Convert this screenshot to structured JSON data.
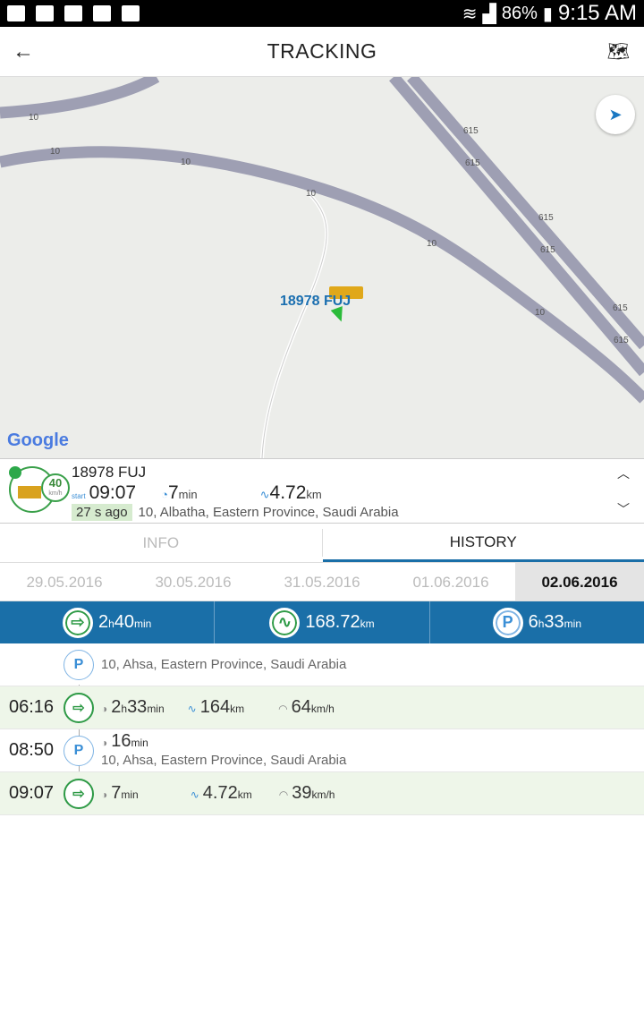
{
  "status_bar": {
    "battery": "86%",
    "time": "9:15 AM"
  },
  "header": {
    "title": "TRACKING",
    "back_icon": "arrow-left-icon",
    "map_icon": "map-icon"
  },
  "map": {
    "road_labels": [
      "10",
      "10",
      "10",
      "10",
      "10",
      "10",
      "615",
      "615",
      "615",
      "615",
      "615",
      "615"
    ],
    "vehicle_label": "18978 FUJ",
    "attribution": "Google"
  },
  "vehicle": {
    "name": "18978 FUJ",
    "speed": "40",
    "speed_unit": "km/h",
    "start_label": "start",
    "start_time": "09:07",
    "duration": "7",
    "duration_unit": "min",
    "distance": "4.72",
    "distance_unit": "km",
    "ago": "27 s ago",
    "address": "10, Albatha, Eastern Province, Saudi Arabia"
  },
  "tabs": [
    {
      "label": "INFO",
      "active": false
    },
    {
      "label": "HISTORY",
      "active": true
    }
  ],
  "dates": [
    {
      "label": "29.05.2016"
    },
    {
      "label": "30.05.2016"
    },
    {
      "label": "31.05.2016"
    },
    {
      "label": "01.06.2016"
    },
    {
      "label": "02.06.2016",
      "active": true
    }
  ],
  "summary": {
    "driving_h": "2",
    "driving_m": "40",
    "distance": "168.72",
    "parking_h": "6",
    "parking_m": "33",
    "h": "h",
    "min": "min",
    "km": "km"
  },
  "history": [
    {
      "type": "parking",
      "time": "",
      "address": "10, Ahsa, Eastern Province, Saudi Arabia"
    },
    {
      "type": "trip",
      "time": "06:16",
      "dur_h": "2",
      "dur_m": "33",
      "distance": "164",
      "speed": "64"
    },
    {
      "type": "parking",
      "time": "08:50",
      "dur_m": "16",
      "address": "10, Ahsa, Eastern Province, Saudi Arabia"
    },
    {
      "type": "trip",
      "time": "09:07",
      "dur_m": "7",
      "distance": "4.72",
      "speed": "39"
    }
  ],
  "units": {
    "h": "h",
    "min": "min",
    "km": "km",
    "kmh": "km/h",
    "P": "P"
  },
  "colors": {
    "primary": "#1a6fa8",
    "trip_green": "#2e9a46",
    "parking_blue": "#3b8fd6",
    "row_green": "#eef6e9"
  }
}
